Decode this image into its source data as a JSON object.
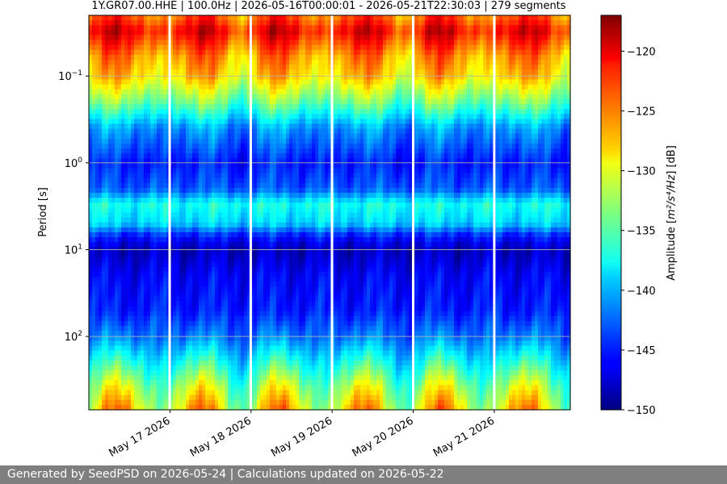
{
  "chart_data": {
    "type": "heatmap",
    "title": "1Y.GR07.00.HHE | 100.0Hz | 2026-05-16T00:00:01 - 2026-05-21T22:30:03 | 279 segments",
    "ylabel": "Period [s]",
    "y_scale": "log",
    "y_inverted": true,
    "ylim": [
      0.02,
      700
    ],
    "y_ticks": [
      {
        "value": 0.1,
        "base": "10",
        "exp": "−1"
      },
      {
        "value": 1,
        "base": "10",
        "exp": "0"
      },
      {
        "value": 10,
        "base": "10",
        "exp": "1"
      },
      {
        "value": 100,
        "base": "10",
        "exp": "2"
      }
    ],
    "xlim": [
      "2026-05-16T00:00:01",
      "2026-05-21T22:30:03"
    ],
    "x_ticks": [
      {
        "date": "2026-05-17",
        "label": "May 17 2026"
      },
      {
        "date": "2026-05-18",
        "label": "May 18 2026"
      },
      {
        "date": "2026-05-19",
        "label": "May 19 2026"
      },
      {
        "date": "2026-05-20",
        "label": "May 20 2026"
      },
      {
        "date": "2026-05-21",
        "label": "May 21 2026"
      }
    ],
    "gaps": [
      "2026-05-16T23:55",
      "2026-05-17T23:55",
      "2026-05-18T23:58",
      "2026-05-20T00:00",
      "2026-05-21T00:00"
    ],
    "colorbar": {
      "label_prefix": "Amplitude [",
      "label_math": "m²/s⁴/Hz",
      "label_suffix": "] [dB]",
      "min": -150,
      "max": -117,
      "colormap": "jet",
      "ticks": [
        "−120",
        "−125",
        "−130",
        "−135",
        "−140",
        "−145",
        "−150"
      ],
      "tick_values": [
        -120,
        -125,
        -130,
        -135,
        -140,
        -145,
        -150
      ]
    },
    "period_bands": [
      {
        "period": 0.022,
        "db": -124
      },
      {
        "period": 0.03,
        "db": -121
      },
      {
        "period": 0.06,
        "db": -126
      },
      {
        "period": 0.1,
        "db": -128
      },
      {
        "period": 0.2,
        "db": -134
      },
      {
        "period": 0.4,
        "db": -141
      },
      {
        "period": 1,
        "db": -145
      },
      {
        "period": 2,
        "db": -143
      },
      {
        "period": 3,
        "db": -137
      },
      {
        "period": 5,
        "db": -139
      },
      {
        "period": 7,
        "db": -145
      },
      {
        "period": 10,
        "db": -148
      },
      {
        "period": 20,
        "db": -146
      },
      {
        "period": 50,
        "db": -145
      },
      {
        "period": 100,
        "db": -142
      },
      {
        "period": 200,
        "db": -137
      },
      {
        "period": 400,
        "db": -132
      },
      {
        "period": 700,
        "db": -129
      }
    ]
  },
  "footer": {
    "text": "Generated by SeedPSD on 2026-05-24 | Calculations updated on 2026-05-22"
  }
}
